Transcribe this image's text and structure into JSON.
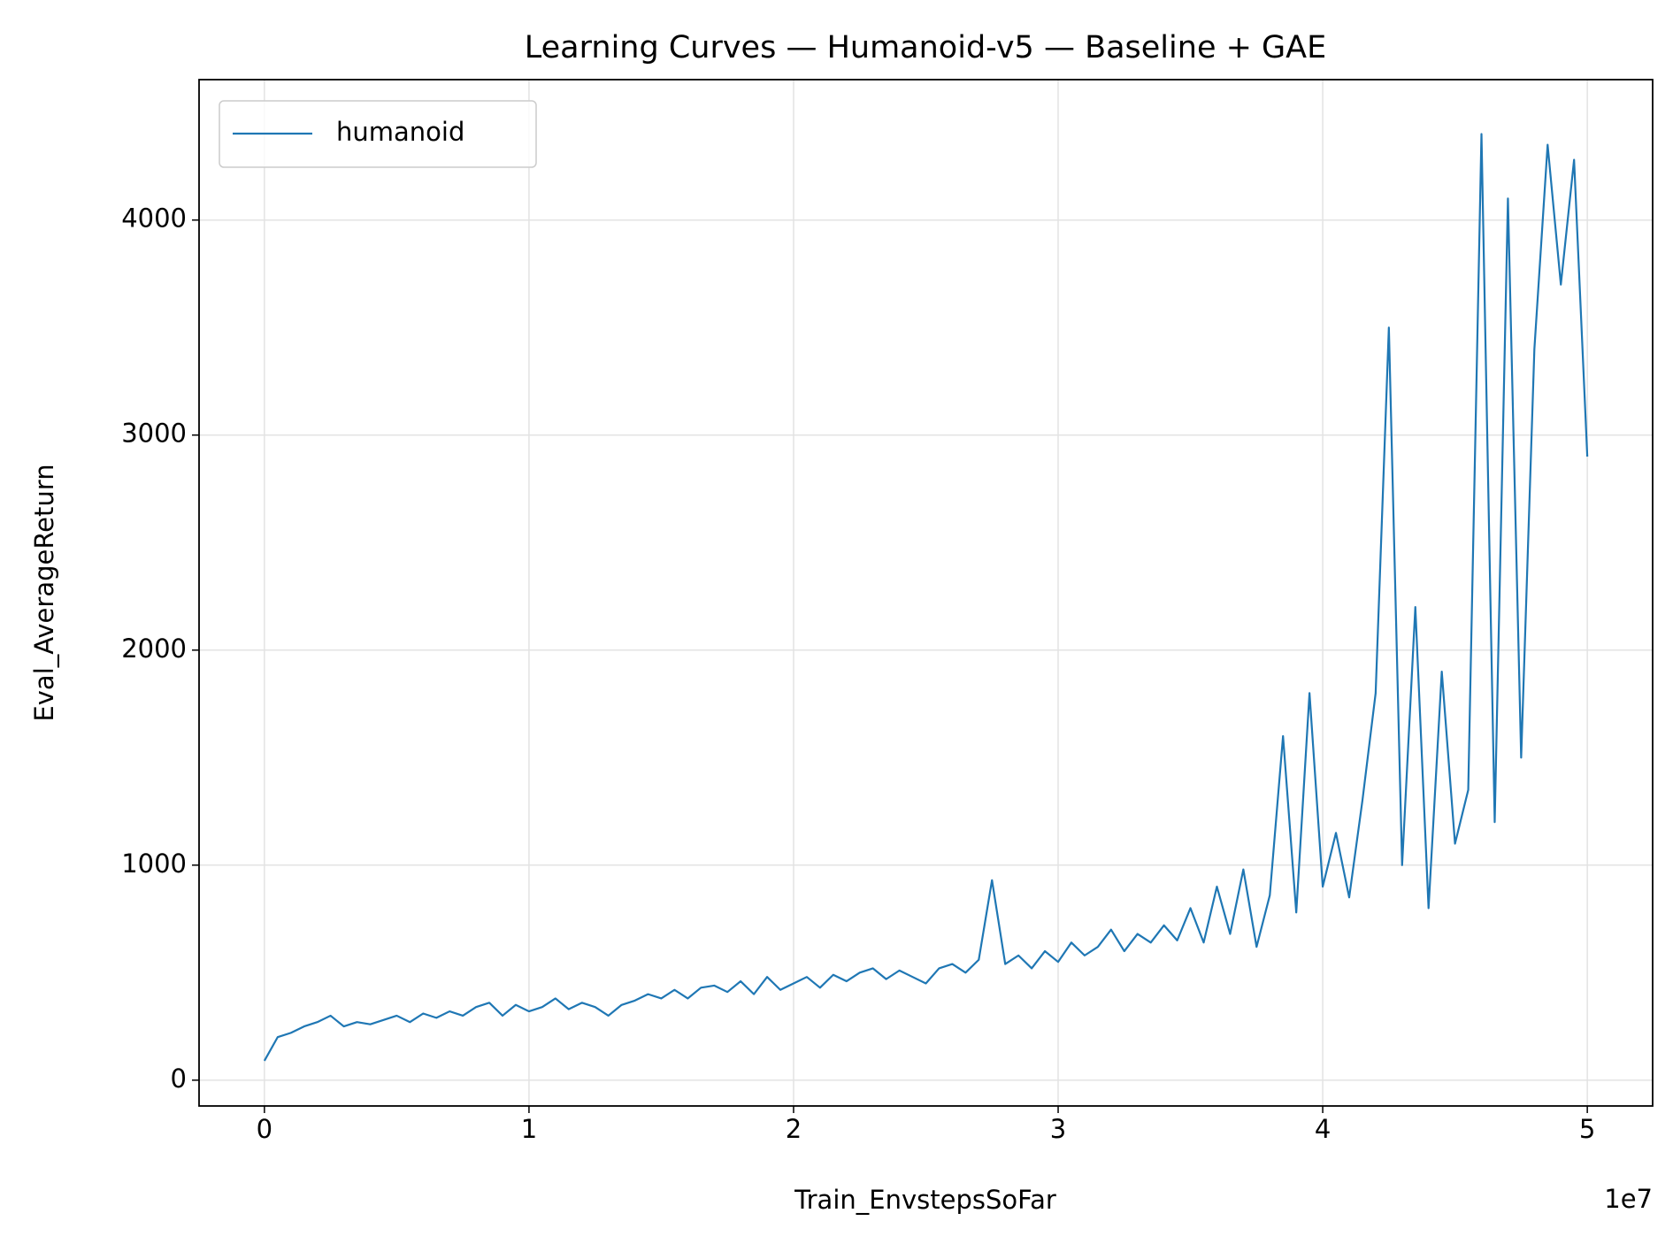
{
  "chart_data": {
    "type": "line",
    "title": "Learning Curves — Humanoid-v5 — Baseline + GAE",
    "x_label": "Train_EnvstepsSoFar",
    "y_label": "Eval_AverageReturn",
    "x_offset_label": "1e7",
    "x": [
      0,
      500000,
      1000000,
      1500000,
      2000000,
      2500000,
      3000000,
      3500000,
      4000000,
      4500000,
      5000000,
      5500000,
      6000000,
      6500000,
      7000000,
      7500000,
      8000000,
      8500000,
      9000000,
      9500000,
      10000000,
      10500000,
      11000000,
      11500000,
      12000000,
      12500000,
      13000000,
      13500000,
      14000000,
      14500000,
      15000000,
      15500000,
      16000000,
      16500000,
      17000000,
      17500000,
      18000000,
      18500000,
      19000000,
      19500000,
      20000000,
      20500000,
      21000000,
      21500000,
      22000000,
      22500000,
      23000000,
      23500000,
      24000000,
      24500000,
      25000000,
      25500000,
      26000000,
      26500000,
      27000000,
      27500000,
      28000000,
      28500000,
      29000000,
      29500000,
      30000000,
      30500000,
      31000000,
      31500000,
      32000000,
      32500000,
      33000000,
      33500000,
      34000000,
      34500000,
      35000000,
      35500000,
      36000000,
      36500000,
      37000000,
      37500000,
      38000000,
      38500000,
      39000000,
      39500000,
      40000000,
      40500000,
      41000000,
      41500000,
      42000000,
      42500000,
      43000000,
      43500000,
      44000000,
      44500000,
      45000000,
      45500000,
      46000000,
      46500000,
      47000000,
      47500000,
      48000000,
      48500000,
      49000000,
      49500000,
      50000000
    ],
    "series": [
      {
        "name": "humanoid",
        "color": "#1f77b4",
        "values": [
          90,
          200,
          220,
          250,
          270,
          300,
          250,
          270,
          260,
          280,
          300,
          270,
          310,
          290,
          320,
          300,
          340,
          360,
          300,
          350,
          320,
          340,
          380,
          330,
          360,
          340,
          300,
          350,
          370,
          400,
          380,
          420,
          380,
          430,
          440,
          410,
          460,
          400,
          480,
          420,
          450,
          480,
          430,
          490,
          460,
          500,
          520,
          470,
          510,
          480,
          450,
          520,
          540,
          500,
          560,
          930,
          540,
          580,
          520,
          600,
          550,
          640,
          580,
          620,
          700,
          600,
          680,
          640,
          720,
          650,
          800,
          640,
          900,
          680,
          980,
          620,
          860,
          1600,
          780,
          1800,
          900,
          1150,
          850,
          1300,
          1800,
          3500,
          1000,
          2200,
          800,
          1900,
          1100,
          1350,
          4400,
          1200,
          4100,
          1500,
          3400,
          4350,
          3700,
          4280,
          2900
        ]
      }
    ],
    "xlim": [
      -2470000,
      52470000
    ],
    "xticks": [
      {
        "value": 0,
        "label": "0"
      },
      {
        "value": 10000000,
        "label": "1"
      },
      {
        "value": 20000000,
        "label": "2"
      },
      {
        "value": 30000000,
        "label": "3"
      },
      {
        "value": 40000000,
        "label": "4"
      },
      {
        "value": 50000000,
        "label": "5"
      }
    ],
    "ylim": [
      -120,
      4653
    ],
    "yticks": [
      0,
      1000,
      2000,
      3000,
      4000
    ],
    "grid": true,
    "legend": "upper left"
  }
}
